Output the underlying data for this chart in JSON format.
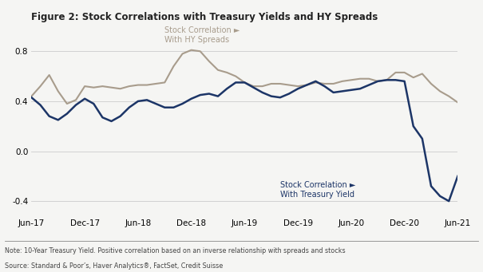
{
  "title": "Figure 2: Stock Correlations with Treasury Yields and HY Spreads",
  "note": "Note: 10-Year Treasury Yield. Positive correlation based on an inverse relationship with spreads and stocks",
  "source": "Source: Standard & Poor’s, Haver Analytics®, FactSet, Credit Suisse",
  "hy_label": "Stock Correlation ►\nWith HY Spreads",
  "ty_label": "Stock Correlation ►\nWith Treasury Yield",
  "hy_color": "#a89c8c",
  "ty_color": "#1c3567",
  "background_color": "#f5f5f3",
  "ylim": [
    -0.52,
    0.98
  ],
  "yticks": [
    -0.4,
    0.0,
    0.4,
    0.8
  ],
  "xtick_labels": [
    "Jun-17",
    "Dec-17",
    "Jun-18",
    "Dec-18",
    "Jun-19",
    "Dec-19",
    "Jun-20",
    "Dec-20",
    "Jun-21"
  ],
  "x_positions": [
    0,
    6,
    12,
    18,
    24,
    30,
    36,
    42,
    48
  ],
  "hy_x": [
    0,
    1,
    2,
    3,
    4,
    5,
    6,
    7,
    8,
    9,
    10,
    11,
    12,
    13,
    14,
    15,
    16,
    17,
    18,
    19,
    20,
    21,
    22,
    23,
    24,
    25,
    26,
    27,
    28,
    29,
    30,
    31,
    32,
    33,
    34,
    35,
    36,
    37,
    38,
    39,
    40,
    41,
    42,
    43,
    44,
    45,
    46,
    47,
    48
  ],
  "hy_y": [
    0.44,
    0.52,
    0.61,
    0.48,
    0.38,
    0.41,
    0.52,
    0.51,
    0.52,
    0.51,
    0.5,
    0.52,
    0.53,
    0.53,
    0.54,
    0.55,
    0.68,
    0.78,
    0.81,
    0.8,
    0.72,
    0.65,
    0.63,
    0.6,
    0.55,
    0.52,
    0.52,
    0.54,
    0.54,
    0.53,
    0.52,
    0.53,
    0.55,
    0.54,
    0.54,
    0.56,
    0.57,
    0.58,
    0.58,
    0.56,
    0.57,
    0.63,
    0.63,
    0.59,
    0.62,
    0.54,
    0.48,
    0.44,
    0.39
  ],
  "ty_x": [
    0,
    1,
    2,
    3,
    4,
    5,
    6,
    7,
    8,
    9,
    10,
    11,
    12,
    13,
    14,
    15,
    16,
    17,
    18,
    19,
    20,
    21,
    22,
    23,
    24,
    25,
    26,
    27,
    28,
    29,
    30,
    31,
    32,
    33,
    34,
    35,
    36,
    37,
    38,
    39,
    40,
    41,
    42,
    43,
    44,
    45,
    46,
    47,
    48
  ],
  "ty_y": [
    0.43,
    0.37,
    0.28,
    0.25,
    0.3,
    0.37,
    0.42,
    0.38,
    0.27,
    0.24,
    0.28,
    0.35,
    0.4,
    0.41,
    0.38,
    0.35,
    0.35,
    0.38,
    0.42,
    0.45,
    0.46,
    0.44,
    0.5,
    0.55,
    0.55,
    0.51,
    0.47,
    0.44,
    0.43,
    0.46,
    0.5,
    0.53,
    0.56,
    0.52,
    0.47,
    0.48,
    0.49,
    0.5,
    0.53,
    0.56,
    0.57,
    0.57,
    0.56,
    0.2,
    0.1,
    -0.28,
    -0.36,
    -0.4,
    -0.2
  ]
}
